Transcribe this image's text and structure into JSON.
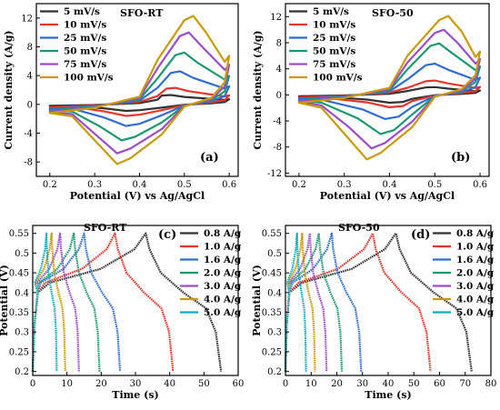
{
  "chart_data": [
    {
      "type": "line",
      "title": "SFO-RT",
      "panel_label": "(a)",
      "xlabel": "Potential (V) vs Ag/AgCl",
      "ylabel": "Current density (A/g)",
      "xlim": [
        0.17,
        0.62
      ],
      "ylim": [
        -10,
        14
      ],
      "xticks": [
        0.2,
        0.3,
        0.4,
        0.5,
        0.6
      ],
      "yticks": [
        -8,
        -4,
        0,
        4,
        8,
        12
      ],
      "legend_position": "top-left",
      "grid": false,
      "curve_kind": "cv",
      "series": [
        {
          "name": "5 mV/s",
          "color": "#333333",
          "scale": 1,
          "oxidation_peak": [
            0.47,
            1.3
          ],
          "reduction_peak": [
            0.37,
            -0.9
          ]
        },
        {
          "name": "10 mV/s",
          "color": "#e8352b",
          "scale": 2,
          "oxidation_peak": [
            0.48,
            2.3
          ],
          "reduction_peak": [
            0.37,
            -1.6
          ]
        },
        {
          "name": "25 mV/s",
          "color": "#2f6cd6",
          "scale": 3,
          "oxidation_peak": [
            0.49,
            4.6
          ],
          "reduction_peak": [
            0.37,
            -3.0
          ]
        },
        {
          "name": "50 mV/s",
          "color": "#1a9a6c",
          "scale": 4,
          "oxidation_peak": [
            0.5,
            7.2
          ],
          "reduction_peak": [
            0.36,
            -5.0
          ]
        },
        {
          "name": "75 mV/s",
          "color": "#9b4dca",
          "scale": 5,
          "oxidation_peak": [
            0.51,
            10.0
          ],
          "reduction_peak": [
            0.35,
            -6.8
          ]
        },
        {
          "name": "100 mV/s",
          "color": "#c99a06",
          "scale": 6,
          "oxidation_peak": [
            0.52,
            12.3
          ],
          "reduction_peak": [
            0.35,
            -8.3
          ]
        }
      ]
    },
    {
      "type": "line",
      "title": "SFO-50",
      "panel_label": "(b)",
      "xlabel": "Potential (V) vs Ag/AgCl",
      "ylabel": "Current density (A/g)",
      "xlim": [
        0.17,
        0.62
      ],
      "ylim": [
        -12.5,
        14
      ],
      "xticks": [
        0.2,
        0.3,
        0.4,
        0.5,
        0.6
      ],
      "yticks": [
        -12,
        -8,
        -4,
        0,
        4,
        8,
        12
      ],
      "legend_position": "top-left",
      "grid": false,
      "curve_kind": "cv",
      "series": [
        {
          "name": "5 mV/s",
          "color": "#333333",
          "scale": 1,
          "oxidation_peak": [
            0.5,
            1.2
          ],
          "reduction_peak": [
            0.4,
            -1.2
          ]
        },
        {
          "name": "10 mV/s",
          "color": "#e8352b",
          "scale": 2,
          "oxidation_peak": [
            0.5,
            2.2
          ],
          "reduction_peak": [
            0.4,
            -1.9
          ]
        },
        {
          "name": "25 mV/s",
          "color": "#2f6cd6",
          "scale": 3,
          "oxidation_peak": [
            0.5,
            4.8
          ],
          "reduction_peak": [
            0.39,
            -3.7
          ]
        },
        {
          "name": "50 mV/s",
          "color": "#1a9a6c",
          "scale": 4,
          "oxidation_peak": [
            0.51,
            7.9
          ],
          "reduction_peak": [
            0.38,
            -6.0
          ]
        },
        {
          "name": "75 mV/s",
          "color": "#9b4dca",
          "scale": 5,
          "oxidation_peak": [
            0.52,
            10.0
          ],
          "reduction_peak": [
            0.36,
            -8.2
          ]
        },
        {
          "name": "100 mV/s",
          "color": "#c99a06",
          "scale": 6,
          "oxidation_peak": [
            0.53,
            12.1
          ],
          "reduction_peak": [
            0.35,
            -9.9
          ]
        }
      ]
    },
    {
      "type": "line",
      "title": "SFO-RT",
      "panel_label": "(c)",
      "xlabel": "Time (s)",
      "ylabel": "Potential (V)",
      "xlim": [
        0,
        60
      ],
      "ylim": [
        0.19,
        0.57
      ],
      "xticks": [
        0,
        10,
        20,
        30,
        40,
        50,
        60
      ],
      "yticks": [
        0.2,
        0.25,
        0.3,
        0.35,
        0.4,
        0.45,
        0.5,
        0.55
      ],
      "legend_position": "top-right",
      "grid": false,
      "curve_kind": "gcd",
      "series": [
        {
          "name": "0.8 A/g",
          "color": "#333333",
          "charge_time": 33,
          "discharge_end": 55
        },
        {
          "name": "1.0 A/g",
          "color": "#e8352b",
          "charge_time": 24,
          "discharge_end": 41
        },
        {
          "name": "1.6 A/g",
          "color": "#2f6cd6",
          "charge_time": 15,
          "discharge_end": 25.5
        },
        {
          "name": "2.0 A/g",
          "color": "#1a9a6c",
          "charge_time": 12,
          "discharge_end": 19.5
        },
        {
          "name": "3.0 A/g",
          "color": "#9b4dca",
          "charge_time": 8,
          "discharge_end": 13.5
        },
        {
          "name": "4.0 A/g",
          "color": "#c99a06",
          "charge_time": 5.5,
          "discharge_end": 9.5
        },
        {
          "name": "5.0 A/g",
          "color": "#11aabb",
          "charge_time": 4,
          "discharge_end": 7
        }
      ]
    },
    {
      "type": "line",
      "title": "SFO-50",
      "panel_label": "(d)",
      "xlabel": "Time (s)",
      "ylabel": "Potential (V)",
      "xlim": [
        0,
        80
      ],
      "ylim": [
        0.19,
        0.57
      ],
      "xticks": [
        0,
        10,
        20,
        30,
        40,
        50,
        60,
        70,
        80
      ],
      "yticks": [
        0.2,
        0.25,
        0.3,
        0.35,
        0.4,
        0.45,
        0.5,
        0.55
      ],
      "legend_position": "top-right",
      "grid": false,
      "curve_kind": "gcd",
      "series": [
        {
          "name": "0.8 A/g",
          "color": "#333333",
          "charge_time": 43,
          "discharge_end": 72.5
        },
        {
          "name": "1.0 A/g",
          "color": "#e8352b",
          "charge_time": 34,
          "discharge_end": 56.5
        },
        {
          "name": "1.6 A/g",
          "color": "#2f6cd6",
          "charge_time": 18,
          "discharge_end": 29.5
        },
        {
          "name": "2.0 A/g",
          "color": "#1a9a6c",
          "charge_time": 13,
          "discharge_end": 22
        },
        {
          "name": "3.0 A/g",
          "color": "#9b4dca",
          "charge_time": 9.5,
          "discharge_end": 16
        },
        {
          "name": "4.0 A/g",
          "color": "#c99a06",
          "charge_time": 6.5,
          "discharge_end": 11.5
        },
        {
          "name": "5.0 A/g",
          "color": "#11aabb",
          "charge_time": 4.5,
          "discharge_end": 8
        }
      ]
    }
  ]
}
